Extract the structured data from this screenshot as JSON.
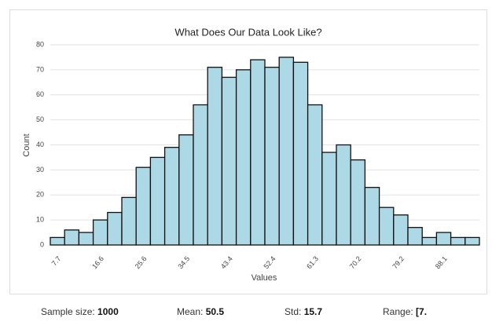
{
  "chart_data": {
    "type": "bar",
    "title": "What Does Our Data Look Like?",
    "x_label": "Values",
    "y_label": "Count",
    "categories": [
      "7.7",
      null,
      null,
      "16.6",
      null,
      null,
      "25.6",
      null,
      null,
      "34.5",
      null,
      null,
      "43.4",
      null,
      null,
      "52.4",
      null,
      null,
      "61.3",
      null,
      null,
      "70.2",
      null,
      null,
      "79.2",
      null,
      null,
      "88.1",
      null,
      null
    ],
    "values": [
      3,
      6,
      5,
      10,
      13,
      19,
      31,
      35,
      39,
      44,
      56,
      71,
      67,
      70,
      74,
      71,
      75,
      73,
      56,
      37,
      40,
      34,
      23,
      15,
      12,
      7,
      3,
      5,
      3,
      3
    ],
    "color": "#add8e6",
    "ylim": [
      0,
      80
    ],
    "yticks": [
      0,
      10,
      20,
      30,
      40,
      50,
      60,
      70,
      80
    ],
    "grid": true
  },
  "stats": [
    {
      "label": "Sample size:",
      "value": "1000"
    },
    {
      "label": "Mean:",
      "value": "50.5"
    },
    {
      "label": "Std:",
      "value": "15.7"
    },
    {
      "label": "Range:",
      "value": "[7."
    }
  ]
}
